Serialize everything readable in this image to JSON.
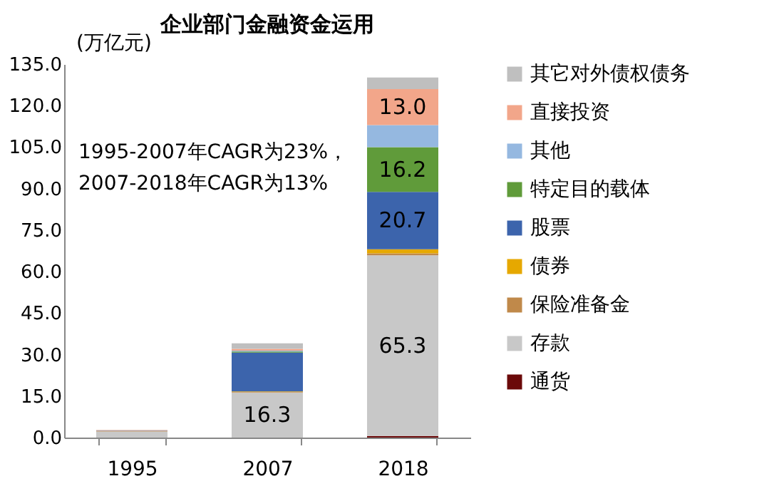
{
  "chart_data": {
    "type": "bar",
    "stacked": true,
    "title": "企业部门金融资金运用",
    "ylabel": "(万亿元)",
    "categories": [
      "1995",
      "2007",
      "2018"
    ],
    "series": [
      {
        "name": "通货",
        "color": "#6b0a0a",
        "values": [
          null,
          null,
          0.6
        ]
      },
      {
        "name": "存款",
        "color": "#c8c8c8",
        "values": [
          2.2,
          16.3,
          65.3
        ],
        "value_labels": [
          null,
          "16.3",
          "65.3"
        ]
      },
      {
        "name": "保险准备金",
        "color": "#c0894a",
        "values": [
          0.1,
          0.2,
          0.7
        ]
      },
      {
        "name": "债券",
        "color": "#e6a800",
        "values": [
          0.1,
          0.2,
          1.5
        ]
      },
      {
        "name": "股票",
        "color": "#3c64ac",
        "values": [
          0.1,
          14.0,
          20.7
        ],
        "value_labels": [
          null,
          null,
          "20.7"
        ]
      },
      {
        "name": "特定目的载体",
        "color": "#609b3a",
        "values": [
          0.0,
          0.4,
          16.2
        ],
        "value_labels": [
          null,
          null,
          "16.2"
        ]
      },
      {
        "name": "其他",
        "color": "#95b8e0",
        "values": [
          0.0,
          0.3,
          8.0
        ]
      },
      {
        "name": "直接投资",
        "color": "#f2a68a",
        "values": [
          0.2,
          0.7,
          13.0
        ],
        "value_labels": [
          null,
          null,
          "13.0"
        ]
      },
      {
        "name": "其它对外债权债务",
        "color": "#bfbfbf",
        "values": [
          0.1,
          2.0,
          4.2
        ]
      }
    ],
    "ylim": [
      0,
      135
    ],
    "yticks": [
      {
        "value": 0,
        "label": "0.0"
      },
      {
        "value": 15,
        "label": "15.0"
      },
      {
        "value": 30,
        "label": "30.0"
      },
      {
        "value": 45,
        "label": "45.0"
      },
      {
        "value": 60,
        "label": "60.0"
      },
      {
        "value": 75,
        "label": "75.0"
      },
      {
        "value": 90,
        "label": "90.0"
      },
      {
        "value": 105,
        "label": "105.0"
      },
      {
        "value": 120,
        "label": "120.0"
      },
      {
        "value": 135,
        "label": "135.0"
      }
    ],
    "annotations": [
      "1995-2007年CAGR为23%，",
      "2007-2018年CAGR为13%"
    ],
    "legend": "right",
    "grid": false
  }
}
